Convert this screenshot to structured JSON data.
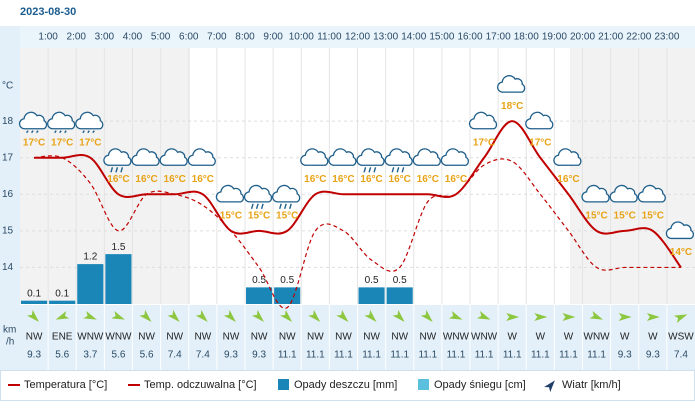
{
  "chart_data": {
    "type": "weather",
    "title": "2023-08-30",
    "hour_labels": [
      "1:00",
      "2:00",
      "3:00",
      "4:00",
      "5:00",
      "6:00",
      "7:00",
      "8:00",
      "9:00",
      "10:00",
      "11:00",
      "12:00",
      "13:00",
      "14:00",
      "15:00",
      "16:00",
      "17:00",
      "18:00",
      "19:00",
      "20:00",
      "21:00",
      "22:00",
      "23:00"
    ],
    "y_label": "°C",
    "ylim": [
      13,
      20
    ],
    "yticks": [
      14,
      15,
      16,
      17,
      18
    ],
    "y2lim": [
      0,
      7.7
    ],
    "grid": true,
    "icons": [
      "drizzle",
      "drizzle",
      "drizzle",
      "rain",
      "cloud",
      "cloud",
      "cloud",
      "cloud",
      "rain",
      "rain",
      "cloud",
      "cloud",
      "rain",
      "rain",
      "cloud",
      "cloud",
      "cloud",
      "cloud",
      "cloud",
      "cloud",
      "cloud",
      "cloud",
      "cloud",
      "cloud"
    ],
    "series": [
      {
        "name": "Temperatura [°C]",
        "color": "#c00000",
        "values": [
          17,
          17,
          17,
          16,
          16,
          16,
          16,
          15,
          15,
          15,
          16,
          16,
          16,
          16,
          16,
          16,
          17,
          18,
          17,
          16,
          15,
          15,
          15,
          14
        ],
        "value_labels": [
          "17°C",
          "17°C",
          "17°C",
          "16°C",
          "16°C",
          "16°C",
          "16°C",
          "15°C",
          "15°C",
          "15°C",
          "16°C",
          "16°C",
          "16°C",
          "16°C",
          "16°C",
          "16°C",
          "17°C",
          "18°C",
          "17°C",
          "16°C",
          "15°C",
          "15°C",
          "15°C",
          "14°C"
        ]
      },
      {
        "name": "Temp. odczuwalna [°C]",
        "color": "#c00000",
        "dashed": true,
        "values": [
          17,
          17,
          16.3,
          15,
          16,
          16,
          15.7,
          15,
          14,
          12.9,
          15,
          15,
          14.2,
          14,
          15.8,
          16,
          16.8,
          16.9,
          16,
          15,
          14,
          14,
          14,
          14
        ]
      },
      {
        "name": "Opady deszczu [mm]",
        "color": "#1a86b8",
        "axis": "y2",
        "values": [
          0.1,
          0.1,
          1.2,
          1.5,
          0,
          0,
          0,
          0,
          0.5,
          0.5,
          0,
          0,
          0.5,
          0.5,
          0,
          0,
          0,
          0,
          0,
          0,
          0,
          0,
          0,
          0
        ]
      },
      {
        "name": "Opady śniegu [cm]",
        "color": "#5bc0de",
        "axis": "y2",
        "values": [
          0,
          0,
          0,
          0,
          0,
          0,
          0,
          0,
          0,
          0,
          0,
          0,
          0,
          0,
          0,
          0,
          0,
          0,
          0,
          0,
          0,
          0,
          0,
          0
        ]
      }
    ],
    "wind": {
      "name": "Wiatr [km/h]",
      "unit_lines": [
        "km",
        "/h"
      ],
      "directions": [
        "NW",
        "ENE",
        "WNW",
        "WNW",
        "NW",
        "NW",
        "NW",
        "NW",
        "NW",
        "NW",
        "NW",
        "NW",
        "NW",
        "NW",
        "NW",
        "WNW",
        "WNW",
        "W",
        "W",
        "W",
        "WNW",
        "W",
        "W",
        "WSW"
      ],
      "values": [
        9.3,
        5.6,
        3.7,
        5.6,
        5.6,
        7.4,
        7.4,
        9.3,
        9.3,
        11.1,
        11.1,
        11.1,
        11.1,
        11.1,
        11.1,
        11.1,
        11.1,
        11.1,
        11.1,
        11.1,
        11.1,
        9.3,
        9.3,
        7.4
      ]
    }
  }
}
